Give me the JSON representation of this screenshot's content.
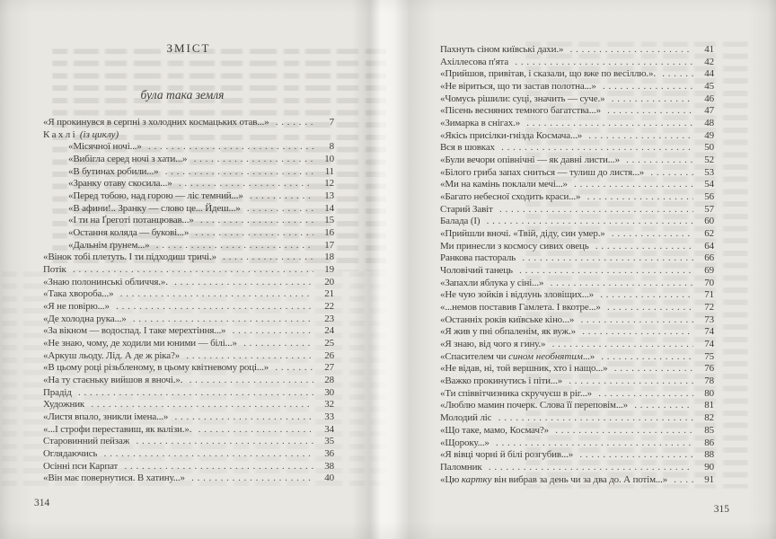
{
  "toc": {
    "title": "ЗМІСТ",
    "section_heading": "була така земля",
    "left_page": {
      "folio": "314",
      "entries": [
        {
          "pre": "«Я прокинувся в серпні з холодних космацьких отав...»",
          "p": "7"
        },
        {
          "pre": "Кахлі",
          "sp": true,
          "it": " (із циклу)",
          "p": ""
        },
        {
          "pre": "«Місячної ночі...»",
          "p": "8",
          "ind": 1
        },
        {
          "pre": "«Вибігла серед ночі з хати...»",
          "p": "10",
          "ind": 1
        },
        {
          "pre": "«В бутинах робили...»",
          "p": "11",
          "ind": 1
        },
        {
          "pre": "«Зранку отаву скосила...»",
          "p": "12",
          "ind": 1
        },
        {
          "pre": "«Перед тобою, над горою — ліс темний...»",
          "p": "13",
          "ind": 1
        },
        {
          "pre": "«В афини!.. Зранку — слово це... Йдеш...»",
          "p": "14",
          "ind": 1
        },
        {
          "pre": "«І ти на Ґреготі потанцював...»",
          "p": "15",
          "ind": 1
        },
        {
          "pre": "«Остання коляда — букові...»",
          "p": "16",
          "ind": 1
        },
        {
          "pre": "«Дальнім ґрунем...»",
          "p": "17",
          "ind": 1
        },
        {
          "pre": "«Вінок тобі плетуть. І ти підходиш тричі.»",
          "p": "18"
        },
        {
          "pre": "Потік",
          "p": "19"
        },
        {
          "pre": "«Знаю полонинські обличчя.».",
          "p": "20"
        },
        {
          "pre": "«Така хвороба...»",
          "p": "21"
        },
        {
          "pre": "«Я не повірю...»",
          "p": "22"
        },
        {
          "pre": "«Де холодна рука...»",
          "p": "23"
        },
        {
          "pre": "«За вікном — водоспад. І таке мерехтіння...»",
          "p": "24"
        },
        {
          "pre": "«Не знаю, чому, де ходили ми юними — білі...»",
          "p": "25"
        },
        {
          "pre": "«Аркуш льоду. Лід. А де ж ріка?»",
          "p": "26"
        },
        {
          "pre": "«В цьому році різьбленому, в цьому квітневому році...»",
          "p": "27"
        },
        {
          "pre": "«На ту стаєньку вийшов я вночі.».",
          "p": "28"
        },
        {
          "pre": "Прадід",
          "p": "30"
        },
        {
          "pre": "Художник",
          "p": "32"
        },
        {
          "pre": "«Листя впало, зникли імена...»",
          "p": "33"
        },
        {
          "pre": "«...І строфи переставиш, як валізи.».",
          "p": "34"
        },
        {
          "pre": "Старовинний пейзаж",
          "p": "35"
        },
        {
          "pre": "Оглядаючись",
          "p": "36"
        },
        {
          "pre": "Осінні пси Карпат",
          "p": "38"
        },
        {
          "pre": "«Він має повернутися. В хатину...»",
          "p": "40"
        }
      ]
    },
    "right_page": {
      "folio": "315",
      "entries": [
        {
          "pre": "Пахнуть сіном київські дахи.»",
          "p": "41"
        },
        {
          "pre": "Ахіллесова п'ята",
          "p": "42"
        },
        {
          "pre": "«Прийшов, привітав, і сказали, що вже по весіллю.».",
          "p": "44"
        },
        {
          "pre": "«Не віриться, що ти застав полотна...»",
          "p": "45"
        },
        {
          "pre": "«Чомусь рішили: суці, значить — суче.»",
          "p": "46"
        },
        {
          "pre": "«Пісень весняних темного багатства...»",
          "p": "47"
        },
        {
          "pre": "«Зимарка в снігах.»",
          "p": "48"
        },
        {
          "pre": "«Якісь присілки-гнізда Космача...»",
          "p": "49"
        },
        {
          "pre": "Вся в шовках",
          "p": "50"
        },
        {
          "pre": "«Були вечори опівнічні — як давні листи...»",
          "p": "52"
        },
        {
          "pre": "«Білого гриба запах сниться — тулиш до листя...»",
          "p": "53"
        },
        {
          "pre": "«Ми на камінь поклали мечі...»",
          "p": "54"
        },
        {
          "pre": "«Багато небесної сходить краси...»",
          "p": "56"
        },
        {
          "pre": "Старий Завіт",
          "p": "57"
        },
        {
          "pre": "Балада (І)",
          "p": "60"
        },
        {
          "pre": "«Прийшли вночі. «Твій, діду, син умер.»",
          "p": "62"
        },
        {
          "pre": "Ми принесли з космосу сивих овець",
          "p": "64"
        },
        {
          "pre": "Ранкова пастораль",
          "p": "66"
        },
        {
          "pre": "Чоловічий танець",
          "p": "69"
        },
        {
          "pre": "«Запахли яблука у сіні...»",
          "p": "70"
        },
        {
          "pre": "«Не чую зойків і відлунь зловіщих...»",
          "p": "71"
        },
        {
          "pre": "«...немов поставив Гамлета. І вкотре...»",
          "p": "72"
        },
        {
          "pre": "«Останніх років київське кіно...»",
          "p": "73"
        },
        {
          "pre": "«Я жив у пні обпаленім, як вуж.»",
          "p": "74"
        },
        {
          "pre": "«Я знаю, від чого я гину.»",
          "p": "74"
        },
        {
          "pre": "«Спасителем чи ",
          "it": "сином необнятим",
          "post": "...»",
          "p": "75"
        },
        {
          "pre": "«Не відав, ні, той вершник, хто і нащо...»",
          "p": "76"
        },
        {
          "pre": "«Важко прокинутись і піти...»",
          "p": "78"
        },
        {
          "pre": "«Ти співвітчизника скручуєш в ріг...»",
          "p": "80"
        },
        {
          "pre": "«Люблю мамин почерк. Слова її переповім...»",
          "p": "81"
        },
        {
          "pre": "Молодий ліс",
          "p": "82"
        },
        {
          "pre": "«Що таке, мамо, Космач?»",
          "p": "85"
        },
        {
          "pre": "«Щороку...»",
          "p": "86"
        },
        {
          "pre": "«Я вівці чорні й білі розгубив...»",
          "p": "88"
        },
        {
          "pre": "Паломник",
          "p": "90"
        },
        {
          "pre": "«Цю ",
          "it": "картку",
          "post": " він вибрав за день чи за два до. А потім...»",
          "p": "91"
        }
      ]
    }
  },
  "colors": {
    "paper": "#e9e7e2",
    "ink": "#3e3c37",
    "leader_dots": "#5a5852"
  }
}
